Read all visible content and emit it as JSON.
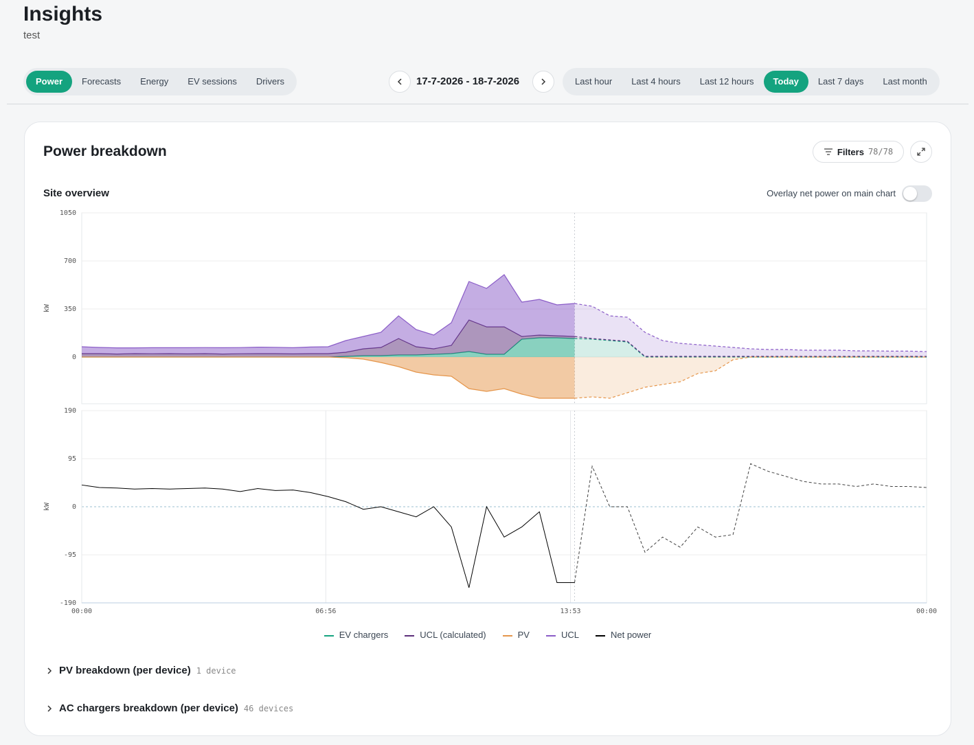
{
  "header": {
    "title": "Insights",
    "subtitle": "test"
  },
  "tabs": {
    "items": [
      "Power",
      "Forecasts",
      "Energy",
      "EV sessions",
      "Drivers"
    ],
    "active": 0
  },
  "date_range": "17-7-2026 - 18-7-2026",
  "ranges": {
    "items": [
      "Last hour",
      "Last 4 hours",
      "Last 12 hours",
      "Today",
      "Last 7 days",
      "Last month"
    ],
    "active": 3
  },
  "card": {
    "title": "Power breakdown",
    "filters_label": "Filters",
    "filters_count": "78/78",
    "section": "Site overview",
    "toggle_label": "Overlay net power on main chart",
    "toggle_on": false
  },
  "chart_data": [
    {
      "type": "area",
      "stacked": true,
      "y_label": "kW",
      "x": [
        0,
        30,
        60,
        90,
        120,
        150,
        180,
        210,
        240,
        270,
        300,
        330,
        360,
        390,
        420,
        450,
        480,
        510,
        540,
        570,
        600,
        630,
        660,
        690,
        720,
        750,
        780,
        810,
        840,
        870,
        900,
        930,
        960,
        990,
        1020,
        1050,
        1080,
        1110,
        1140,
        1170,
        1200,
        1230,
        1260,
        1290,
        1320,
        1350,
        1380,
        1410,
        1440
      ],
      "xlim": [
        0,
        1440
      ],
      "ylim": [
        -340,
        1050
      ],
      "yticks": [
        0,
        350,
        700,
        1050
      ],
      "grid": true,
      "forecast_start": 840,
      "series": [
        {
          "name": "EV chargers",
          "color": "#14a37f",
          "values": [
            0,
            0,
            0,
            0,
            0,
            0,
            0,
            0,
            0,
            0,
            0,
            0,
            0,
            0,
            0,
            5,
            10,
            10,
            15,
            15,
            20,
            25,
            40,
            20,
            20,
            130,
            140,
            140,
            135,
            130,
            120,
            110,
            0,
            0,
            0,
            0,
            0,
            0,
            0,
            0,
            0,
            0,
            0,
            0,
            0,
            0,
            0,
            0,
            0
          ]
        },
        {
          "name": "UCL (calculated)",
          "color": "#5b2d7a",
          "values": [
            25,
            25,
            22,
            25,
            24,
            25,
            23,
            25,
            22,
            24,
            25,
            25,
            23,
            25,
            25,
            30,
            50,
            60,
            120,
            60,
            40,
            60,
            230,
            200,
            200,
            20,
            20,
            15,
            15,
            5,
            5,
            5,
            5,
            5,
            5,
            5,
            5,
            5,
            5,
            5,
            5,
            5,
            5,
            5,
            5,
            5,
            5,
            5,
            5
          ]
        },
        {
          "name": "PV",
          "color": "#e5954a",
          "values": [
            0,
            0,
            0,
            0,
            0,
            0,
            0,
            0,
            0,
            0,
            0,
            0,
            0,
            0,
            0,
            -5,
            -15,
            -40,
            -70,
            -110,
            -130,
            -140,
            -230,
            -250,
            -230,
            -270,
            -300,
            -300,
            -300,
            -290,
            -300,
            -260,
            -220,
            -200,
            -180,
            -120,
            -100,
            -20,
            0,
            0,
            0,
            0,
            0,
            0,
            0,
            0,
            0,
            0,
            0
          ]
        },
        {
          "name": "UCL",
          "color": "#8a5cc7",
          "values": [
            50,
            45,
            45,
            42,
            44,
            43,
            45,
            44,
            46,
            45,
            47,
            46,
            45,
            48,
            50,
            85,
            90,
            110,
            165,
            125,
            100,
            165,
            280,
            280,
            380,
            250,
            260,
            225,
            240,
            235,
            175,
            175,
            175,
            115,
            95,
            85,
            75,
            65,
            55,
            50,
            50,
            45,
            45,
            45,
            40,
            40,
            38,
            38,
            35
          ]
        }
      ]
    },
    {
      "type": "line",
      "y_label": "kW",
      "x": [
        0,
        30,
        60,
        90,
        120,
        150,
        180,
        210,
        240,
        270,
        300,
        330,
        360,
        390,
        420,
        450,
        480,
        510,
        540,
        570,
        600,
        630,
        660,
        690,
        720,
        750,
        780,
        810,
        840,
        870,
        900,
        930,
        960,
        990,
        1020,
        1050,
        1080,
        1110,
        1140,
        1170,
        1200,
        1230,
        1260,
        1290,
        1320,
        1350,
        1380,
        1410,
        1440
      ],
      "xlim": [
        0,
        1440
      ],
      "ylim": [
        -190,
        190
      ],
      "yticks": [
        190,
        95,
        0,
        -95,
        -190
      ],
      "grid": true,
      "forecast_start": 840,
      "xticks": [
        {
          "value": 0,
          "label": "00:00"
        },
        {
          "value": 416,
          "label": "06:56"
        },
        {
          "value": 833,
          "label": "13:53"
        },
        {
          "value": 1440,
          "label": "00:00"
        }
      ],
      "series": [
        {
          "name": "Net power",
          "color": "#000000",
          "values": [
            43,
            38,
            37,
            35,
            36,
            35,
            36,
            37,
            35,
            30,
            36,
            32,
            33,
            28,
            20,
            10,
            -5,
            0,
            -10,
            -20,
            0,
            -40,
            -160,
            0,
            -60,
            -40,
            -10,
            -150,
            -150,
            80,
            0,
            0,
            -90,
            -60,
            -80,
            -40,
            -60,
            -55,
            85,
            70,
            60,
            50,
            45,
            45,
            40,
            45,
            40,
            40,
            38
          ]
        }
      ]
    }
  ],
  "breakdowns": [
    {
      "title": "PV breakdown (per device)",
      "count": "1 device"
    },
    {
      "title": "AC chargers breakdown (per device)",
      "count": "46 devices"
    }
  ]
}
